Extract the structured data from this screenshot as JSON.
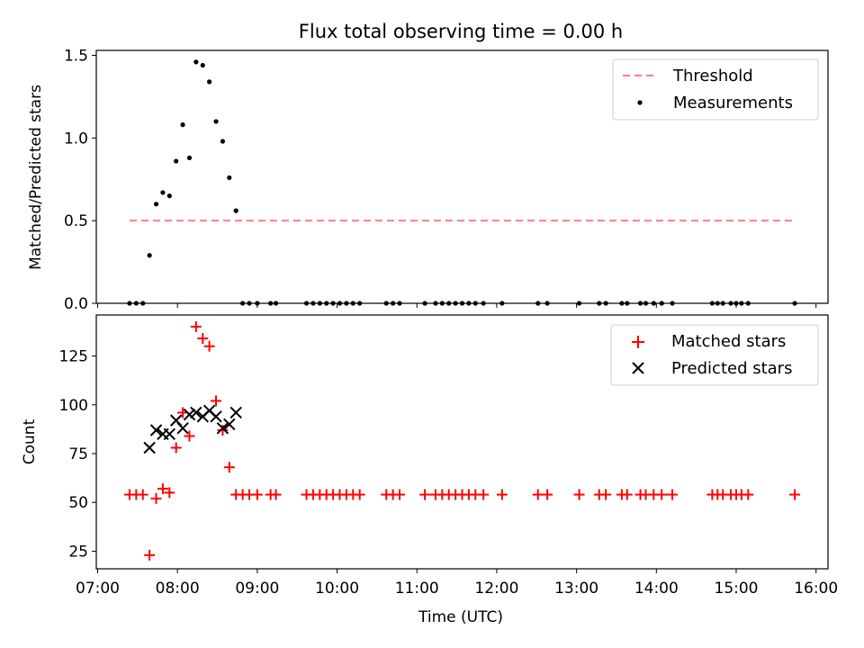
{
  "figure": {
    "title": "Flux total observing time = 0.00 h",
    "xlabel": "Time (UTC)"
  },
  "chart_data": [
    {
      "type": "scatter",
      "title": "Flux total observing time = 0.00 h",
      "ylabel": "Matched/Predicted stars",
      "xlim": [
        "06:59",
        "16:09"
      ],
      "ylim": [
        0,
        1.53
      ],
      "yticks": [
        0.0,
        0.5,
        1.0,
        1.5
      ],
      "ytick_labels": [
        "0.0",
        "0.5",
        "1.0",
        "1.5"
      ],
      "legend_position": "top-right",
      "threshold": {
        "name": "Threshold",
        "value": 0.5,
        "x_start": "07:24",
        "x_end": "15:44",
        "color": "#ff7f7f",
        "style": "dashed"
      },
      "series": [
        {
          "name": "Measurements",
          "color": "#000000",
          "marker": "dot",
          "points": [
            [
              "07:24",
              0
            ],
            [
              "07:29",
              0
            ],
            [
              "07:34",
              0
            ],
            [
              "07:39",
              0.29
            ],
            [
              "07:44",
              0.6
            ],
            [
              "07:49",
              0.67
            ],
            [
              "07:54",
              0.65
            ],
            [
              "07:59",
              0.86
            ],
            [
              "08:04",
              1.08
            ],
            [
              "08:09",
              0.88
            ],
            [
              "08:14",
              1.46
            ],
            [
              "08:19",
              1.44
            ],
            [
              "08:24",
              1.34
            ],
            [
              "08:29",
              1.1
            ],
            [
              "08:34",
              0.98
            ],
            [
              "08:39",
              0.76
            ],
            [
              "08:44",
              0.56
            ],
            [
              "08:49",
              0
            ],
            [
              "08:54",
              0
            ],
            [
              "09:00",
              0
            ],
            [
              "09:10",
              0
            ],
            [
              "09:14",
              0
            ],
            [
              "09:37",
              0
            ],
            [
              "09:42",
              0
            ],
            [
              "09:47",
              0
            ],
            [
              "09:52",
              0
            ],
            [
              "09:57",
              0
            ],
            [
              "10:02",
              0
            ],
            [
              "10:07",
              0
            ],
            [
              "10:12",
              0
            ],
            [
              "10:17",
              0
            ],
            [
              "10:37",
              0
            ],
            [
              "10:42",
              0
            ],
            [
              "10:47",
              0
            ],
            [
              "11:06",
              0
            ],
            [
              "11:14",
              0
            ],
            [
              "11:19",
              0
            ],
            [
              "11:24",
              0
            ],
            [
              "11:29",
              0
            ],
            [
              "11:34",
              0
            ],
            [
              "11:39",
              0
            ],
            [
              "11:44",
              0
            ],
            [
              "11:50",
              0
            ],
            [
              "12:04",
              0
            ],
            [
              "12:31",
              0
            ],
            [
              "12:38",
              0
            ],
            [
              "13:02",
              0
            ],
            [
              "13:17",
              0
            ],
            [
              "13:22",
              0
            ],
            [
              "13:34",
              0
            ],
            [
              "13:38",
              0
            ],
            [
              "13:48",
              0
            ],
            [
              "13:52",
              0
            ],
            [
              "13:58",
              0
            ],
            [
              "14:04",
              0
            ],
            [
              "14:12",
              0
            ],
            [
              "14:42",
              0
            ],
            [
              "14:46",
              0
            ],
            [
              "14:50",
              0
            ],
            [
              "14:56",
              0
            ],
            [
              "15:00",
              0
            ],
            [
              "15:04",
              0
            ],
            [
              "15:09",
              0
            ],
            [
              "15:44",
              0
            ]
          ]
        }
      ]
    },
    {
      "type": "scatter",
      "ylabel": "Count",
      "xlabel": "Time (UTC)",
      "xlim": [
        "06:59",
        "16:09"
      ],
      "ylim": [
        16,
        146
      ],
      "yticks": [
        25,
        50,
        75,
        100,
        125
      ],
      "xticks": [
        "07:00",
        "08:00",
        "09:00",
        "10:00",
        "11:00",
        "12:00",
        "13:00",
        "14:00",
        "15:00",
        "16:00"
      ],
      "legend_position": "top-right",
      "series": [
        {
          "name": "Matched stars",
          "color": "#ff0000",
          "marker": "plus",
          "points": [
            [
              "07:24",
              54
            ],
            [
              "07:29",
              54
            ],
            [
              "07:34",
              54
            ],
            [
              "07:39",
              23
            ],
            [
              "07:44",
              52
            ],
            [
              "07:49",
              57
            ],
            [
              "07:54",
              55
            ],
            [
              "07:59",
              78
            ],
            [
              "08:04",
              96
            ],
            [
              "08:09",
              84
            ],
            [
              "08:14",
              140
            ],
            [
              "08:19",
              134
            ],
            [
              "08:24",
              130
            ],
            [
              "08:29",
              102
            ],
            [
              "08:34",
              87
            ],
            [
              "08:39",
              68
            ],
            [
              "08:44",
              54
            ],
            [
              "08:49",
              54
            ],
            [
              "08:54",
              54
            ],
            [
              "09:00",
              54
            ],
            [
              "09:10",
              54
            ],
            [
              "09:14",
              54
            ],
            [
              "09:37",
              54
            ],
            [
              "09:42",
              54
            ],
            [
              "09:47",
              54
            ],
            [
              "09:52",
              54
            ],
            [
              "09:57",
              54
            ],
            [
              "10:02",
              54
            ],
            [
              "10:07",
              54
            ],
            [
              "10:12",
              54
            ],
            [
              "10:17",
              54
            ],
            [
              "10:37",
              54
            ],
            [
              "10:42",
              54
            ],
            [
              "10:47",
              54
            ],
            [
              "11:06",
              54
            ],
            [
              "11:14",
              54
            ],
            [
              "11:19",
              54
            ],
            [
              "11:24",
              54
            ],
            [
              "11:29",
              54
            ],
            [
              "11:34",
              54
            ],
            [
              "11:39",
              54
            ],
            [
              "11:44",
              54
            ],
            [
              "11:50",
              54
            ],
            [
              "12:04",
              54
            ],
            [
              "12:31",
              54
            ],
            [
              "12:38",
              54
            ],
            [
              "13:02",
              54
            ],
            [
              "13:17",
              54
            ],
            [
              "13:22",
              54
            ],
            [
              "13:34",
              54
            ],
            [
              "13:38",
              54
            ],
            [
              "13:48",
              54
            ],
            [
              "13:52",
              54
            ],
            [
              "13:58",
              54
            ],
            [
              "14:04",
              54
            ],
            [
              "14:12",
              54
            ],
            [
              "14:42",
              54
            ],
            [
              "14:46",
              54
            ],
            [
              "14:50",
              54
            ],
            [
              "14:56",
              54
            ],
            [
              "15:00",
              54
            ],
            [
              "15:04",
              54
            ],
            [
              "15:09",
              54
            ],
            [
              "15:44",
              54
            ]
          ]
        },
        {
          "name": "Predicted stars",
          "color": "#000000",
          "marker": "x",
          "points": [
            [
              "07:39",
              78
            ],
            [
              "07:44",
              87
            ],
            [
              "07:49",
              85
            ],
            [
              "07:54",
              85
            ],
            [
              "07:59",
              92
            ],
            [
              "08:04",
              88
            ],
            [
              "08:09",
              95
            ],
            [
              "08:14",
              96
            ],
            [
              "08:19",
              94
            ],
            [
              "08:24",
              97
            ],
            [
              "08:29",
              94
            ],
            [
              "08:34",
              88
            ],
            [
              "08:39",
              90
            ],
            [
              "08:44",
              96
            ]
          ]
        }
      ]
    }
  ]
}
